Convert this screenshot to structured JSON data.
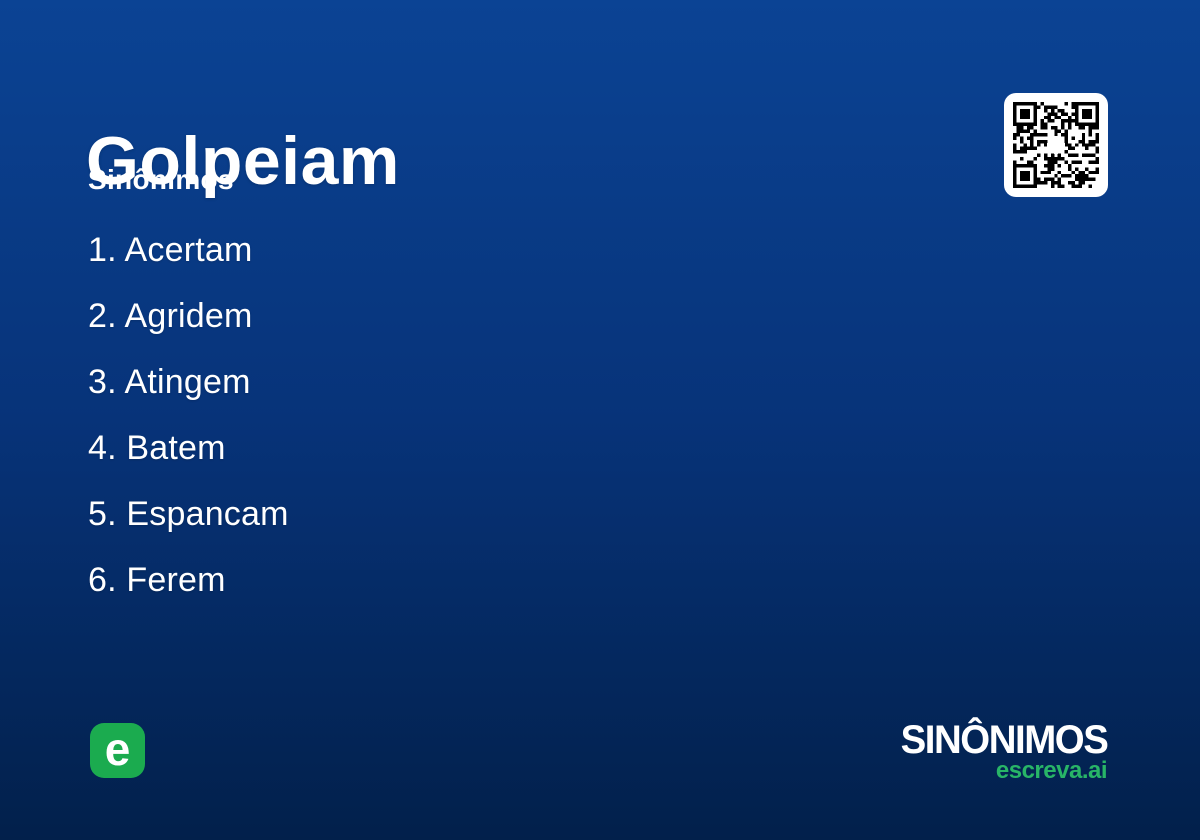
{
  "card": {
    "title": "Golpeiam",
    "subtitle": "Sinônimos"
  },
  "synonyms": [
    {
      "label": "1. Acertam"
    },
    {
      "label": "2. Agridem"
    },
    {
      "label": "3. Atingem"
    },
    {
      "label": "4. Batem"
    },
    {
      "label": "5. Espancam"
    },
    {
      "label": "6. Ferem"
    }
  ],
  "footer": {
    "logo_letter": "e",
    "brand_name": "SINÔNIMOS",
    "brand_domain": "escreva.ai"
  },
  "icons": {
    "qr_code": "qr-code"
  },
  "colors": {
    "background_top": "#0B4394",
    "background_bottom": "#02204B",
    "logo_green": "#1BAB4F",
    "domain_green": "#28B567",
    "text_white": "#FFFFFF",
    "qr_background": "#FFFFFF",
    "qr_modules": "#000000"
  }
}
